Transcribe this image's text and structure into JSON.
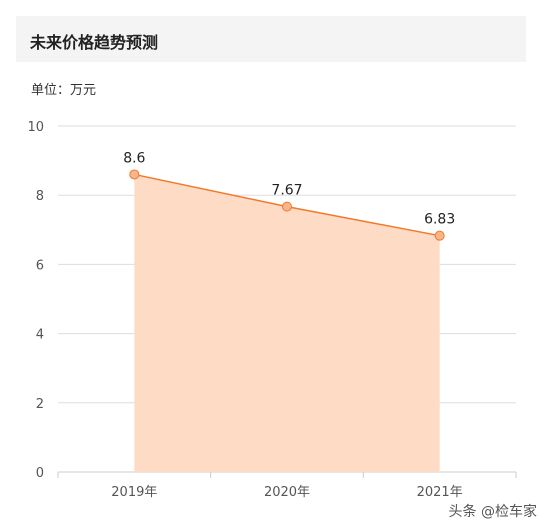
{
  "header": {
    "title": "未来价格趋势预测"
  },
  "unit_label": "单位：万元",
  "watermark": "头条 @检车家",
  "colors": {
    "line": "#f07a2a",
    "area": "#fddbc5",
    "marker": "#f9b58a",
    "grid": "#dddddd",
    "axis_text": "#555555"
  },
  "chart_data": {
    "type": "area",
    "categories": [
      "2019年",
      "2020年",
      "2021年"
    ],
    "values": [
      8.6,
      7.67,
      6.83
    ],
    "value_labels": [
      "8.6",
      "7.67",
      "6.83"
    ],
    "ylim": [
      0,
      10
    ],
    "yticks": [
      "0",
      "2",
      "4",
      "6",
      "8",
      "10"
    ],
    "grid": true
  }
}
